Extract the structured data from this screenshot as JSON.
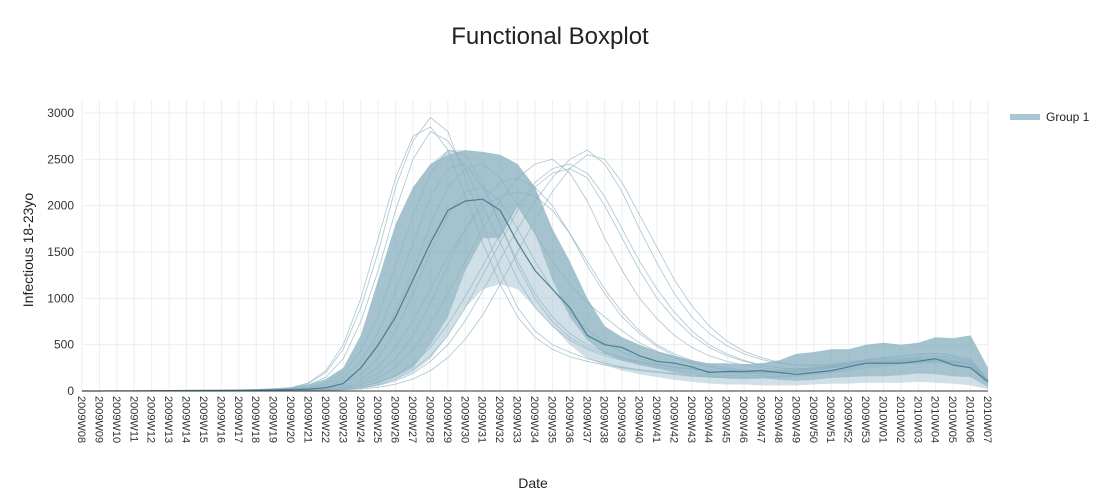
{
  "chart_data": {
    "type": "line",
    "title": "Functional Boxplot",
    "xlabel": "Date",
    "ylabel": "Infectious 18-23yo",
    "ylim": [
      0,
      3000
    ],
    "y_ticks": [
      0,
      500,
      1000,
      1500,
      2000,
      2500,
      3000
    ],
    "grid": true,
    "legend_position": "top-right",
    "legend": [
      "Group 1"
    ],
    "colors": {
      "median": "#4a7f93",
      "band": "#a9c7d2",
      "band_inner": "#6f9fb1",
      "curves": "#8fb2c1"
    },
    "x": [
      "2009W08",
      "2009W09",
      "2009W10",
      "2009W11",
      "2009W12",
      "2009W13",
      "2009W14",
      "2009W15",
      "2009W16",
      "2009W17",
      "2009W18",
      "2009W19",
      "2009W20",
      "2009W21",
      "2009W22",
      "2009W23",
      "2009W24",
      "2009W25",
      "2009W26",
      "2009W27",
      "2009W28",
      "2009W29",
      "2009W30",
      "2009W31",
      "2009W32",
      "2009W33",
      "2009W34",
      "2009W35",
      "2009W36",
      "2009W37",
      "2009W38",
      "2009W39",
      "2009W40",
      "2009W41",
      "2009W42",
      "2009W43",
      "2009W44",
      "2009W45",
      "2009W46",
      "2009W47",
      "2009W48",
      "2009W49",
      "2009W50",
      "2009W51",
      "2009W52",
      "2009W53",
      "2010W01",
      "2010W02",
      "2010W03",
      "2010W04",
      "2010W05",
      "2010W06",
      "2010W07"
    ],
    "x_tick_labels": [
      "2009W08",
      "2009W09",
      "2009W10",
      "2009W11",
      "2009W12",
      "2009W13",
      "2009W14",
      "2009W15",
      "2009W16",
      "2009W17",
      "2009W18",
      "2009W19",
      "2009W20",
      "2009W21",
      "2009W22",
      "2009W23",
      "2009W24",
      "2009W25",
      "2009W26",
      "2009W27",
      "2009W28",
      "2009W29",
      "2009W30",
      "2009W31",
      "2009W32",
      "2009W33",
      "2009W34",
      "2009W35",
      "2009W36",
      "2009W37",
      "2009W38",
      "2009W39",
      "2009W40",
      "2009W41",
      "2009W42",
      "2009W43",
      "2009W44",
      "2009W45",
      "2009W46",
      "2009W47",
      "2009W48",
      "2009W49",
      "2009W50",
      "2009W51",
      "2009W52",
      "2009W53",
      "2010W01",
      "2010W02",
      "2010W03",
      "2010W04",
      "2010W05",
      "2010W06",
      "2010W07"
    ],
    "median": [
      0,
      0,
      2,
      2,
      3,
      4,
      5,
      6,
      7,
      9,
      10,
      12,
      15,
      20,
      35,
      80,
      250,
      500,
      800,
      1200,
      1600,
      1950,
      2050,
      2070,
      1950,
      1600,
      1300,
      1100,
      900,
      600,
      500,
      470,
      380,
      320,
      300,
      260,
      200,
      210,
      210,
      220,
      200,
      180,
      200,
      220,
      260,
      300,
      300,
      300,
      320,
      350,
      280,
      250,
      100
    ],
    "band_50_upper": [
      2,
      2,
      4,
      5,
      6,
      7,
      8,
      10,
      12,
      15,
      20,
      30,
      40,
      70,
      130,
      250,
      600,
      1200,
      1800,
      2200,
      2450,
      2550,
      2600,
      2580,
      2550,
      2450,
      2200,
      1750,
      1400,
      1000,
      700,
      580,
      500,
      430,
      380,
      330,
      300,
      300,
      290,
      300,
      330,
      400,
      420,
      450,
      450,
      500,
      520,
      500,
      520,
      580,
      570,
      600,
      250
    ],
    "band_50_lower": [
      0,
      0,
      0,
      0,
      0,
      0,
      0,
      1,
      1,
      2,
      3,
      4,
      5,
      7,
      10,
      20,
      40,
      80,
      150,
      250,
      500,
      800,
      1300,
      1650,
      1650,
      2000,
      1700,
      1200,
      800,
      550,
      400,
      330,
      280,
      240,
      200,
      170,
      150,
      140,
      140,
      140,
      120,
      110,
      120,
      140,
      150,
      160,
      160,
      170,
      190,
      180,
      160,
      150,
      40
    ],
    "band_outer_upper": [
      2,
      2,
      4,
      5,
      6,
      7,
      8,
      10,
      12,
      15,
      20,
      30,
      40,
      70,
      130,
      250,
      600,
      1200,
      1800,
      2200,
      2450,
      2600,
      2600,
      2580,
      2550,
      2450,
      2200,
      1750,
      1400,
      1000,
      700,
      580,
      500,
      430,
      380,
      330,
      300,
      300,
      290,
      300,
      330,
      400,
      420,
      450,
      450,
      500,
      520,
      500,
      520,
      580,
      570,
      600,
      250
    ],
    "band_outer_lower": [
      0,
      0,
      0,
      0,
      0,
      0,
      0,
      0,
      1,
      1,
      2,
      3,
      4,
      6,
      9,
      15,
      30,
      60,
      120,
      200,
      350,
      600,
      900,
      1100,
      1150,
      1100,
      900,
      700,
      500,
      350,
      280,
      220,
      180,
      150,
      120,
      100,
      80,
      70,
      70,
      60,
      60,
      60,
      70,
      80,
      80,
      90,
      90,
      90,
      100,
      90,
      80,
      60,
      20
    ],
    "series": [
      {
        "values": [
          0,
          0,
          0,
          1,
          1,
          1,
          2,
          2,
          3,
          4,
          6,
          12,
          30,
          80,
          200,
          450,
          900,
          1500,
          2200,
          2700,
          2950,
          2800,
          2300,
          1800,
          1300,
          900,
          650,
          500,
          420,
          350,
          300,
          260,
          230,
          210,
          190,
          170,
          160,
          150,
          140,
          150,
          160,
          170,
          190,
          210,
          240,
          270,
          290,
          300,
          310,
          320,
          300,
          260,
          90
        ]
      },
      {
        "values": [
          0,
          0,
          0,
          1,
          1,
          1,
          2,
          2,
          3,
          4,
          5,
          10,
          25,
          60,
          150,
          350,
          750,
          1300,
          1950,
          2500,
          2800,
          2700,
          2400,
          2000,
          1600,
          1200,
          900,
          700,
          550,
          450,
          380,
          330,
          290,
          260,
          230,
          200,
          180,
          170,
          160,
          170,
          180,
          200,
          220,
          250,
          280,
          300,
          320,
          340,
          360,
          380,
          360,
          320,
          110
        ]
      },
      {
        "values": [
          0,
          0,
          0,
          0,
          1,
          1,
          1,
          2,
          2,
          3,
          4,
          6,
          12,
          25,
          50,
          110,
          240,
          480,
          850,
          1300,
          1800,
          2200,
          2400,
          2450,
          2300,
          2000,
          1700,
          1400,
          1150,
          950,
          800,
          650,
          520,
          430,
          360,
          300,
          260,
          230,
          210,
          200,
          200,
          210,
          230,
          260,
          290,
          330,
          360,
          380,
          400,
          410,
          380,
          330,
          120
        ]
      },
      {
        "values": [
          0,
          0,
          0,
          0,
          0,
          1,
          1,
          1,
          2,
          2,
          3,
          4,
          8,
          15,
          30,
          60,
          130,
          260,
          470,
          760,
          1100,
          1450,
          1750,
          1980,
          2100,
          2150,
          2100,
          1950,
          1700,
          1400,
          1100,
          850,
          650,
          500,
          400,
          330,
          280,
          250,
          230,
          220,
          220,
          230,
          250,
          280,
          310,
          340,
          360,
          380,
          390,
          400,
          380,
          340,
          130
        ]
      },
      {
        "values": [
          0,
          0,
          0,
          0,
          0,
          0,
          1,
          1,
          1,
          2,
          2,
          3,
          5,
          10,
          18,
          35,
          70,
          140,
          260,
          450,
          720,
          1050,
          1400,
          1750,
          2050,
          2300,
          2450,
          2500,
          2350,
          2050,
          1650,
          1300,
          1000,
          780,
          600,
          470,
          380,
          320,
          280,
          250,
          230,
          230,
          240,
          260,
          280,
          300,
          310,
          320,
          330,
          330,
          310,
          280,
          100
        ]
      },
      {
        "values": [
          0,
          0,
          0,
          0,
          0,
          0,
          1,
          1,
          1,
          1,
          2,
          3,
          4,
          8,
          14,
          25,
          50,
          95,
          170,
          290,
          470,
          720,
          1020,
          1350,
          1700,
          2000,
          2250,
          2400,
          2450,
          2350,
          2100,
          1750,
          1400,
          1100,
          850,
          650,
          500,
          400,
          330,
          280,
          250,
          240,
          250,
          270,
          290,
          310,
          320,
          330,
          340,
          340,
          320,
          290,
          100
        ]
      },
      {
        "values": [
          0,
          0,
          0,
          0,
          1,
          1,
          2,
          3,
          4,
          5,
          8,
          14,
          35,
          90,
          220,
          500,
          1000,
          1650,
          2300,
          2750,
          2850,
          2600,
          2100,
          1600,
          1150,
          800,
          580,
          450,
          370,
          320,
          280,
          250,
          220,
          200,
          180,
          160,
          150,
          140,
          130,
          140,
          150,
          160,
          180,
          200,
          220,
          250,
          270,
          290,
          300,
          310,
          290,
          250,
          80
        ]
      },
      {
        "values": [
          0,
          0,
          0,
          0,
          0,
          0,
          0,
          1,
          1,
          1,
          2,
          2,
          3,
          6,
          10,
          18,
          35,
          70,
          130,
          230,
          380,
          600,
          900,
          1250,
          1600,
          1950,
          2200,
          2350,
          2400,
          2300,
          2000,
          1650,
          1300,
          1000,
          780,
          600,
          470,
          380,
          320,
          280,
          250,
          240,
          250,
          270,
          300,
          330,
          350,
          360,
          370,
          370,
          350,
          310,
          110
        ]
      },
      {
        "values": [
          0,
          0,
          0,
          0,
          0,
          0,
          1,
          1,
          1,
          2,
          2,
          3,
          6,
          12,
          22,
          45,
          95,
          190,
          350,
          600,
          950,
          1350,
          1750,
          2050,
          2250,
          2300,
          2200,
          2000,
          1700,
          1350,
          1050,
          800,
          620,
          480,
          380,
          310,
          260,
          230,
          210,
          200,
          200,
          210,
          230,
          250,
          280,
          300,
          320,
          330,
          340,
          350,
          330,
          300,
          110
        ]
      },
      {
        "values": [
          0,
          0,
          0,
          1,
          1,
          1,
          2,
          2,
          3,
          4,
          6,
          9,
          18,
          40,
          90,
          200,
          430,
          820,
          1350,
          1900,
          2350,
          2600,
          2550,
          2250,
          1800,
          1350,
          1000,
          750,
          580,
          470,
          400,
          350,
          310,
          280,
          250,
          230,
          210,
          200,
          190,
          190,
          200,
          210,
          230,
          250,
          270,
          290,
          300,
          310,
          320,
          330,
          310,
          280,
          100
        ]
      },
      {
        "values": [
          0,
          0,
          0,
          0,
          0,
          0,
          0,
          1,
          1,
          1,
          1,
          2,
          3,
          5,
          9,
          16,
          30,
          60,
          110,
          190,
          320,
          500,
          760,
          1080,
          1420,
          1750,
          2050,
          2300,
          2500,
          2600,
          2450,
          2150,
          1750,
          1380,
          1050,
          800,
          620,
          490,
          400,
          340,
          300,
          280,
          280,
          290,
          310,
          330,
          340,
          350,
          350,
          350,
          330,
          300,
          110
        ]
      },
      {
        "values": [
          0,
          0,
          0,
          0,
          0,
          1,
          1,
          1,
          2,
          2,
          3,
          5,
          10,
          20,
          40,
          85,
          180,
          360,
          650,
          1050,
          1500,
          1900,
          2150,
          2200,
          2050,
          1750,
          1400,
          1100,
          850,
          660,
          520,
          420,
          350,
          300,
          260,
          230,
          210,
          200,
          190,
          190,
          200,
          210,
          230,
          250,
          270,
          290,
          300,
          310,
          320,
          330,
          310,
          280,
          100
        ]
      },
      {
        "values": [
          0,
          0,
          0,
          0,
          0,
          0,
          0,
          0,
          1,
          1,
          1,
          2,
          3,
          4,
          7,
          12,
          22,
          40,
          75,
          130,
          220,
          360,
          560,
          820,
          1150,
          1500,
          1850,
          2150,
          2400,
          2550,
          2500,
          2250,
          1900,
          1550,
          1200,
          920,
          700,
          540,
          430,
          360,
          310,
          280,
          270,
          280,
          300,
          320,
          330,
          340,
          340,
          340,
          320,
          290,
          100
        ]
      },
      {
        "values": [
          0,
          0,
          0,
          0,
          1,
          1,
          1,
          2,
          2,
          3,
          4,
          7,
          15,
          32,
          70,
          150,
          320,
          630,
          1080,
          1600,
          2100,
          2400,
          2450,
          2200,
          1800,
          1400,
          1050,
          800,
          620,
          500,
          420,
          360,
          320,
          290,
          260,
          240,
          220,
          210,
          200,
          200,
          210,
          220,
          240,
          260,
          280,
          300,
          310,
          320,
          330,
          340,
          320,
          290,
          100
        ]
      }
    ]
  }
}
